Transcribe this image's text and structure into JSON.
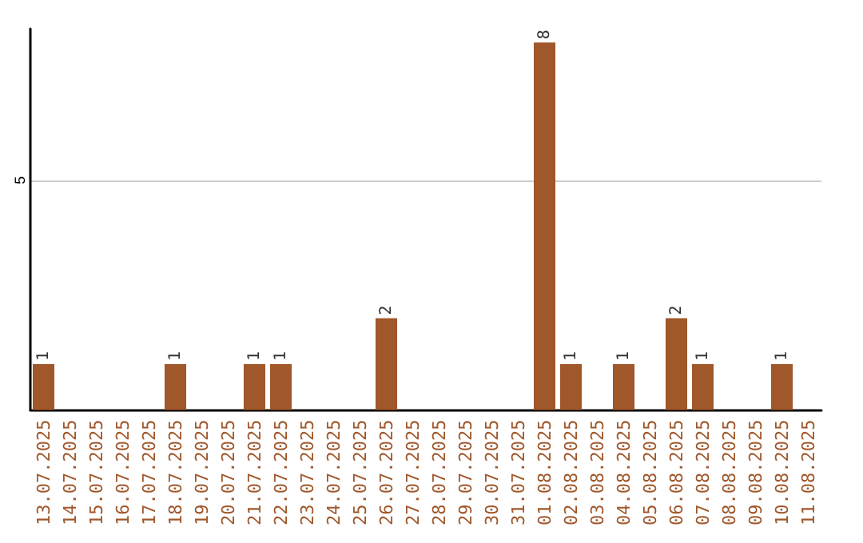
{
  "chart_data": {
    "type": "bar",
    "categories": [
      "13.07.2025",
      "14.07.2025",
      "15.07.2025",
      "16.07.2025",
      "17.07.2025",
      "18.07.2025",
      "19.07.2025",
      "20.07.2025",
      "21.07.2025",
      "22.07.2025",
      "23.07.2025",
      "24.07.2025",
      "25.07.2025",
      "26.07.2025",
      "27.07.2025",
      "28.07.2025",
      "29.07.2025",
      "30.07.2025",
      "31.07.2025",
      "01.08.2025",
      "02.08.2025",
      "03.08.2025",
      "04.08.2025",
      "05.08.2025",
      "06.08.2025",
      "07.08.2025",
      "08.08.2025",
      "09.08.2025",
      "10.08.2025",
      "11.08.2025"
    ],
    "values": [
      1,
      0,
      0,
      0,
      0,
      1,
      0,
      0,
      1,
      1,
      0,
      0,
      0,
      2,
      0,
      0,
      0,
      0,
      0,
      8,
      1,
      0,
      1,
      0,
      2,
      1,
      0,
      0,
      1,
      0
    ],
    "value_labels": [
      "1",
      null,
      null,
      null,
      null,
      "1",
      null,
      null,
      "1",
      "1",
      null,
      null,
      null,
      "2",
      null,
      null,
      null,
      null,
      null,
      "8",
      "1",
      null,
      "1",
      null,
      "2",
      "1",
      null,
      null,
      "1",
      null
    ],
    "color": "#a0572a",
    "ylim": [
      0,
      8.3
    ],
    "yticks": [
      5
    ],
    "grid": "y"
  }
}
